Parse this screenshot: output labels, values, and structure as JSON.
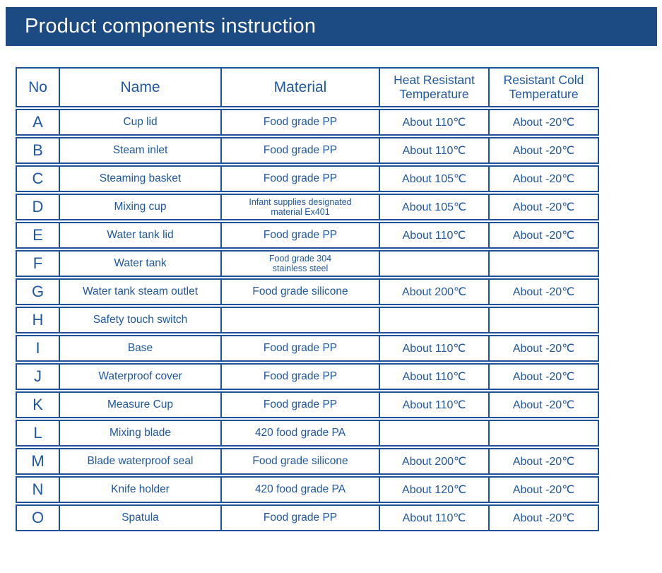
{
  "title_bar": {
    "title": "Product components instruction"
  },
  "colors": {
    "title_bar_bg": "#1b4b82",
    "title_text": "#ffffff",
    "table_border": "#1d529b",
    "table_text": "#1f57a0"
  },
  "table": {
    "columns": [
      {
        "key": "no",
        "label": "No"
      },
      {
        "key": "name",
        "label": "Name"
      },
      {
        "key": "material",
        "label": "Material"
      },
      {
        "key": "heat",
        "label": "Heat Resistant Temperature"
      },
      {
        "key": "cold",
        "label": "Resistant Cold Temperature"
      }
    ],
    "rows": [
      {
        "no": "A",
        "name": "Cup lid",
        "material": "Food grade PP",
        "heat": "About 110℃",
        "cold": "About -20℃"
      },
      {
        "no": "B",
        "name": "Steam inlet",
        "material": "Food grade PP",
        "heat": "About 110℃",
        "cold": "About -20℃"
      },
      {
        "no": "C",
        "name": "Steaming basket",
        "material": "Food grade PP",
        "heat": "About 105℃",
        "cold": "About -20℃"
      },
      {
        "no": "D",
        "name": "Mixing cup",
        "material": "Infant supplies designated\nmaterial Ex401",
        "material_small": true,
        "heat": "About 105℃",
        "cold": "About -20℃"
      },
      {
        "no": "E",
        "name": "Water tank lid",
        "material": "Food grade PP",
        "heat": "About 110℃",
        "cold": "About -20℃"
      },
      {
        "no": "F",
        "name": "Water tank",
        "material": "Food grade 304\nstainless steel",
        "material_small": true,
        "heat": "",
        "cold": ""
      },
      {
        "no": "G",
        "name": "Water tank steam outlet",
        "material": "Food grade silicone",
        "heat": "About 200℃",
        "cold": "About -20℃"
      },
      {
        "no": "H",
        "name": "Safety touch switch",
        "material": "",
        "heat": "",
        "cold": ""
      },
      {
        "no": "I",
        "name": "Base",
        "material": "Food grade PP",
        "heat": "About 110℃",
        "cold": "About -20℃"
      },
      {
        "no": "J",
        "name": "Waterproof cover",
        "material": "Food grade PP",
        "heat": "About 110℃",
        "cold": "About -20℃"
      },
      {
        "no": "K",
        "name": "Measure Cup",
        "material": "Food grade PP",
        "heat": "About 110℃",
        "cold": "About -20℃"
      },
      {
        "no": "L",
        "name": "Mixing blade",
        "material": "420 food grade PA",
        "heat": "",
        "cold": ""
      },
      {
        "no": "M",
        "name": "Blade  waterproof seal",
        "material": "Food grade silicone",
        "heat": "About 200℃",
        "cold": "About -20℃"
      },
      {
        "no": "N",
        "name": "Knife holder",
        "material": "420 food grade PA",
        "heat": "About 120℃",
        "cold": "About -20℃"
      },
      {
        "no": "O",
        "name": "Spatula",
        "material": "Food grade PP",
        "heat": "About 110℃",
        "cold": "About -20℃"
      }
    ]
  }
}
